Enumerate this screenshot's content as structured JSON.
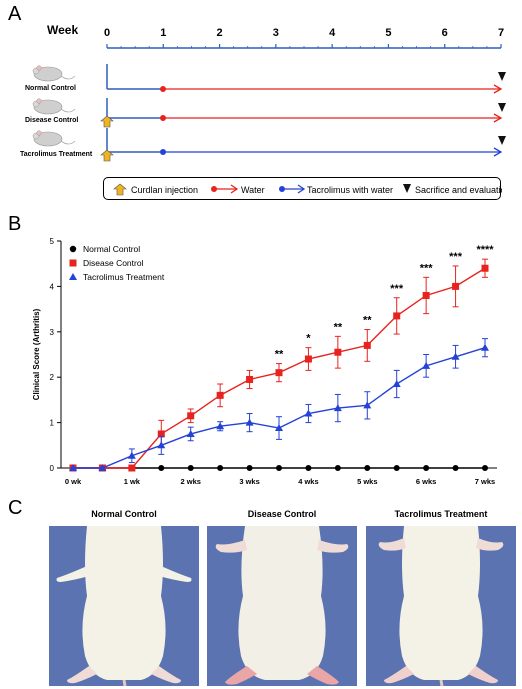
{
  "panels": {
    "a": "A",
    "b": "B",
    "c": "C"
  },
  "timeline": {
    "week_label": "Week",
    "ticks": [
      "0",
      "1",
      "2",
      "3",
      "4",
      "5",
      "6",
      "7"
    ],
    "groups": [
      "Normal Control",
      "Disease Control",
      "Tacrolimus Treatment"
    ],
    "legend": {
      "curdlan": "Curdlan injection",
      "water": "Water",
      "tacrolimus": "Tacrolimus with water",
      "sacrifice": "Sacrifice and evaluation"
    },
    "colors": {
      "water": "#e8231e",
      "tacrolimus": "#2442d6",
      "curdlan": "#f2b321",
      "axis": "#2d5fbf"
    }
  },
  "chart_data": {
    "type": "line",
    "ylabel": "Clinical Score (Arthritis)",
    "xlabel": "",
    "ylim": [
      0,
      5
    ],
    "yticks": [
      "0",
      "1",
      "2",
      "3",
      "4",
      "5"
    ],
    "xticks": [
      {
        "x": 0,
        "label": "0 wk"
      },
      {
        "x": 1,
        "label": "1 wk"
      },
      {
        "x": 2,
        "label": "2 wks"
      },
      {
        "x": 3,
        "label": "3 wks"
      },
      {
        "x": 4,
        "label": "4 wks"
      },
      {
        "x": 5,
        "label": "5 wks"
      },
      {
        "x": 6,
        "label": "6 wks"
      },
      {
        "x": 7,
        "label": "7 wks"
      }
    ],
    "x": [
      0,
      0.5,
      1,
      1.5,
      2,
      2.5,
      3,
      3.5,
      4,
      4.5,
      5,
      5.5,
      6,
      6.5,
      7
    ],
    "series": [
      {
        "name": "Normal Control",
        "color": "#000000",
        "marker": "circle",
        "values": [
          0,
          0,
          0,
          0,
          0,
          0,
          0,
          0,
          0,
          0,
          0,
          0,
          0,
          0,
          0
        ],
        "errors": [
          0,
          0,
          0,
          0,
          0,
          0,
          0,
          0,
          0,
          0,
          0,
          0,
          0,
          0,
          0
        ]
      },
      {
        "name": "Disease Control",
        "color": "#e8231e",
        "marker": "square",
        "values": [
          0,
          0,
          0,
          0.75,
          1.15,
          1.6,
          1.95,
          2.1,
          2.4,
          2.55,
          2.7,
          3.35,
          3.8,
          4.0,
          4.4
        ],
        "errors": [
          0,
          0,
          0,
          0.3,
          0.15,
          0.25,
          0.2,
          0.2,
          0.25,
          0.35,
          0.35,
          0.4,
          0.4,
          0.45,
          0.2
        ]
      },
      {
        "name": "Tacrolimus Treatment",
        "color": "#2442d6",
        "marker": "triangle",
        "values": [
          0,
          0,
          0.27,
          0.5,
          0.75,
          0.92,
          1.0,
          0.88,
          1.2,
          1.32,
          1.38,
          1.85,
          2.25,
          2.45,
          2.65
        ],
        "errors": [
          0,
          0,
          0.15,
          0.2,
          0.15,
          0.1,
          0.2,
          0.25,
          0.2,
          0.3,
          0.3,
          0.3,
          0.25,
          0.25,
          0.2
        ]
      }
    ],
    "annotations": [
      {
        "x": 3.5,
        "text": "**"
      },
      {
        "x": 4,
        "text": "*"
      },
      {
        "x": 4.5,
        "text": "**"
      },
      {
        "x": 5,
        "text": "**"
      },
      {
        "x": 5.5,
        "text": "***"
      },
      {
        "x": 6,
        "text": "***"
      },
      {
        "x": 6.5,
        "text": "***"
      },
      {
        "x": 7,
        "text": "****"
      }
    ],
    "legend_position": "top-left"
  },
  "photos": {
    "titles": [
      "Normal Control",
      "Disease Control",
      "Tacrolimus Treatment"
    ],
    "background": "#5b73b0"
  }
}
